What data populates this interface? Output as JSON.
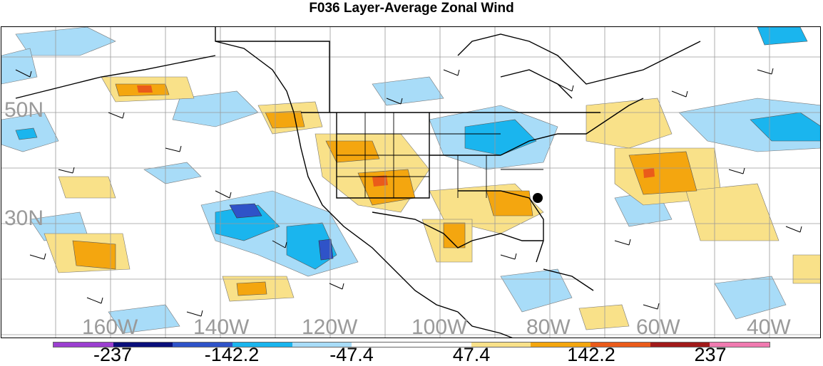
{
  "title": "F036 Layer-Average Zonal Wind",
  "map": {
    "longitude_labels": [
      "160W",
      "140W",
      "120W",
      "100W",
      "80W",
      "60W",
      "40W"
    ],
    "latitude_labels": [
      "50N",
      "30N"
    ],
    "station_marker": "black-dot"
  },
  "legend": {
    "colors": [
      "#9b3fd0",
      "#0a0f7a",
      "#2f53c8",
      "#1ab5ee",
      "#a8dcf8",
      "#ffffff",
      "#ffffff",
      "#f9e189",
      "#f4a60f",
      "#ea5b1a",
      "#a11a1a",
      "#f07ab0"
    ],
    "tick_labels": [
      "-237",
      "-142.2",
      "-47.4",
      "47.4",
      "142.2",
      "237"
    ]
  }
}
